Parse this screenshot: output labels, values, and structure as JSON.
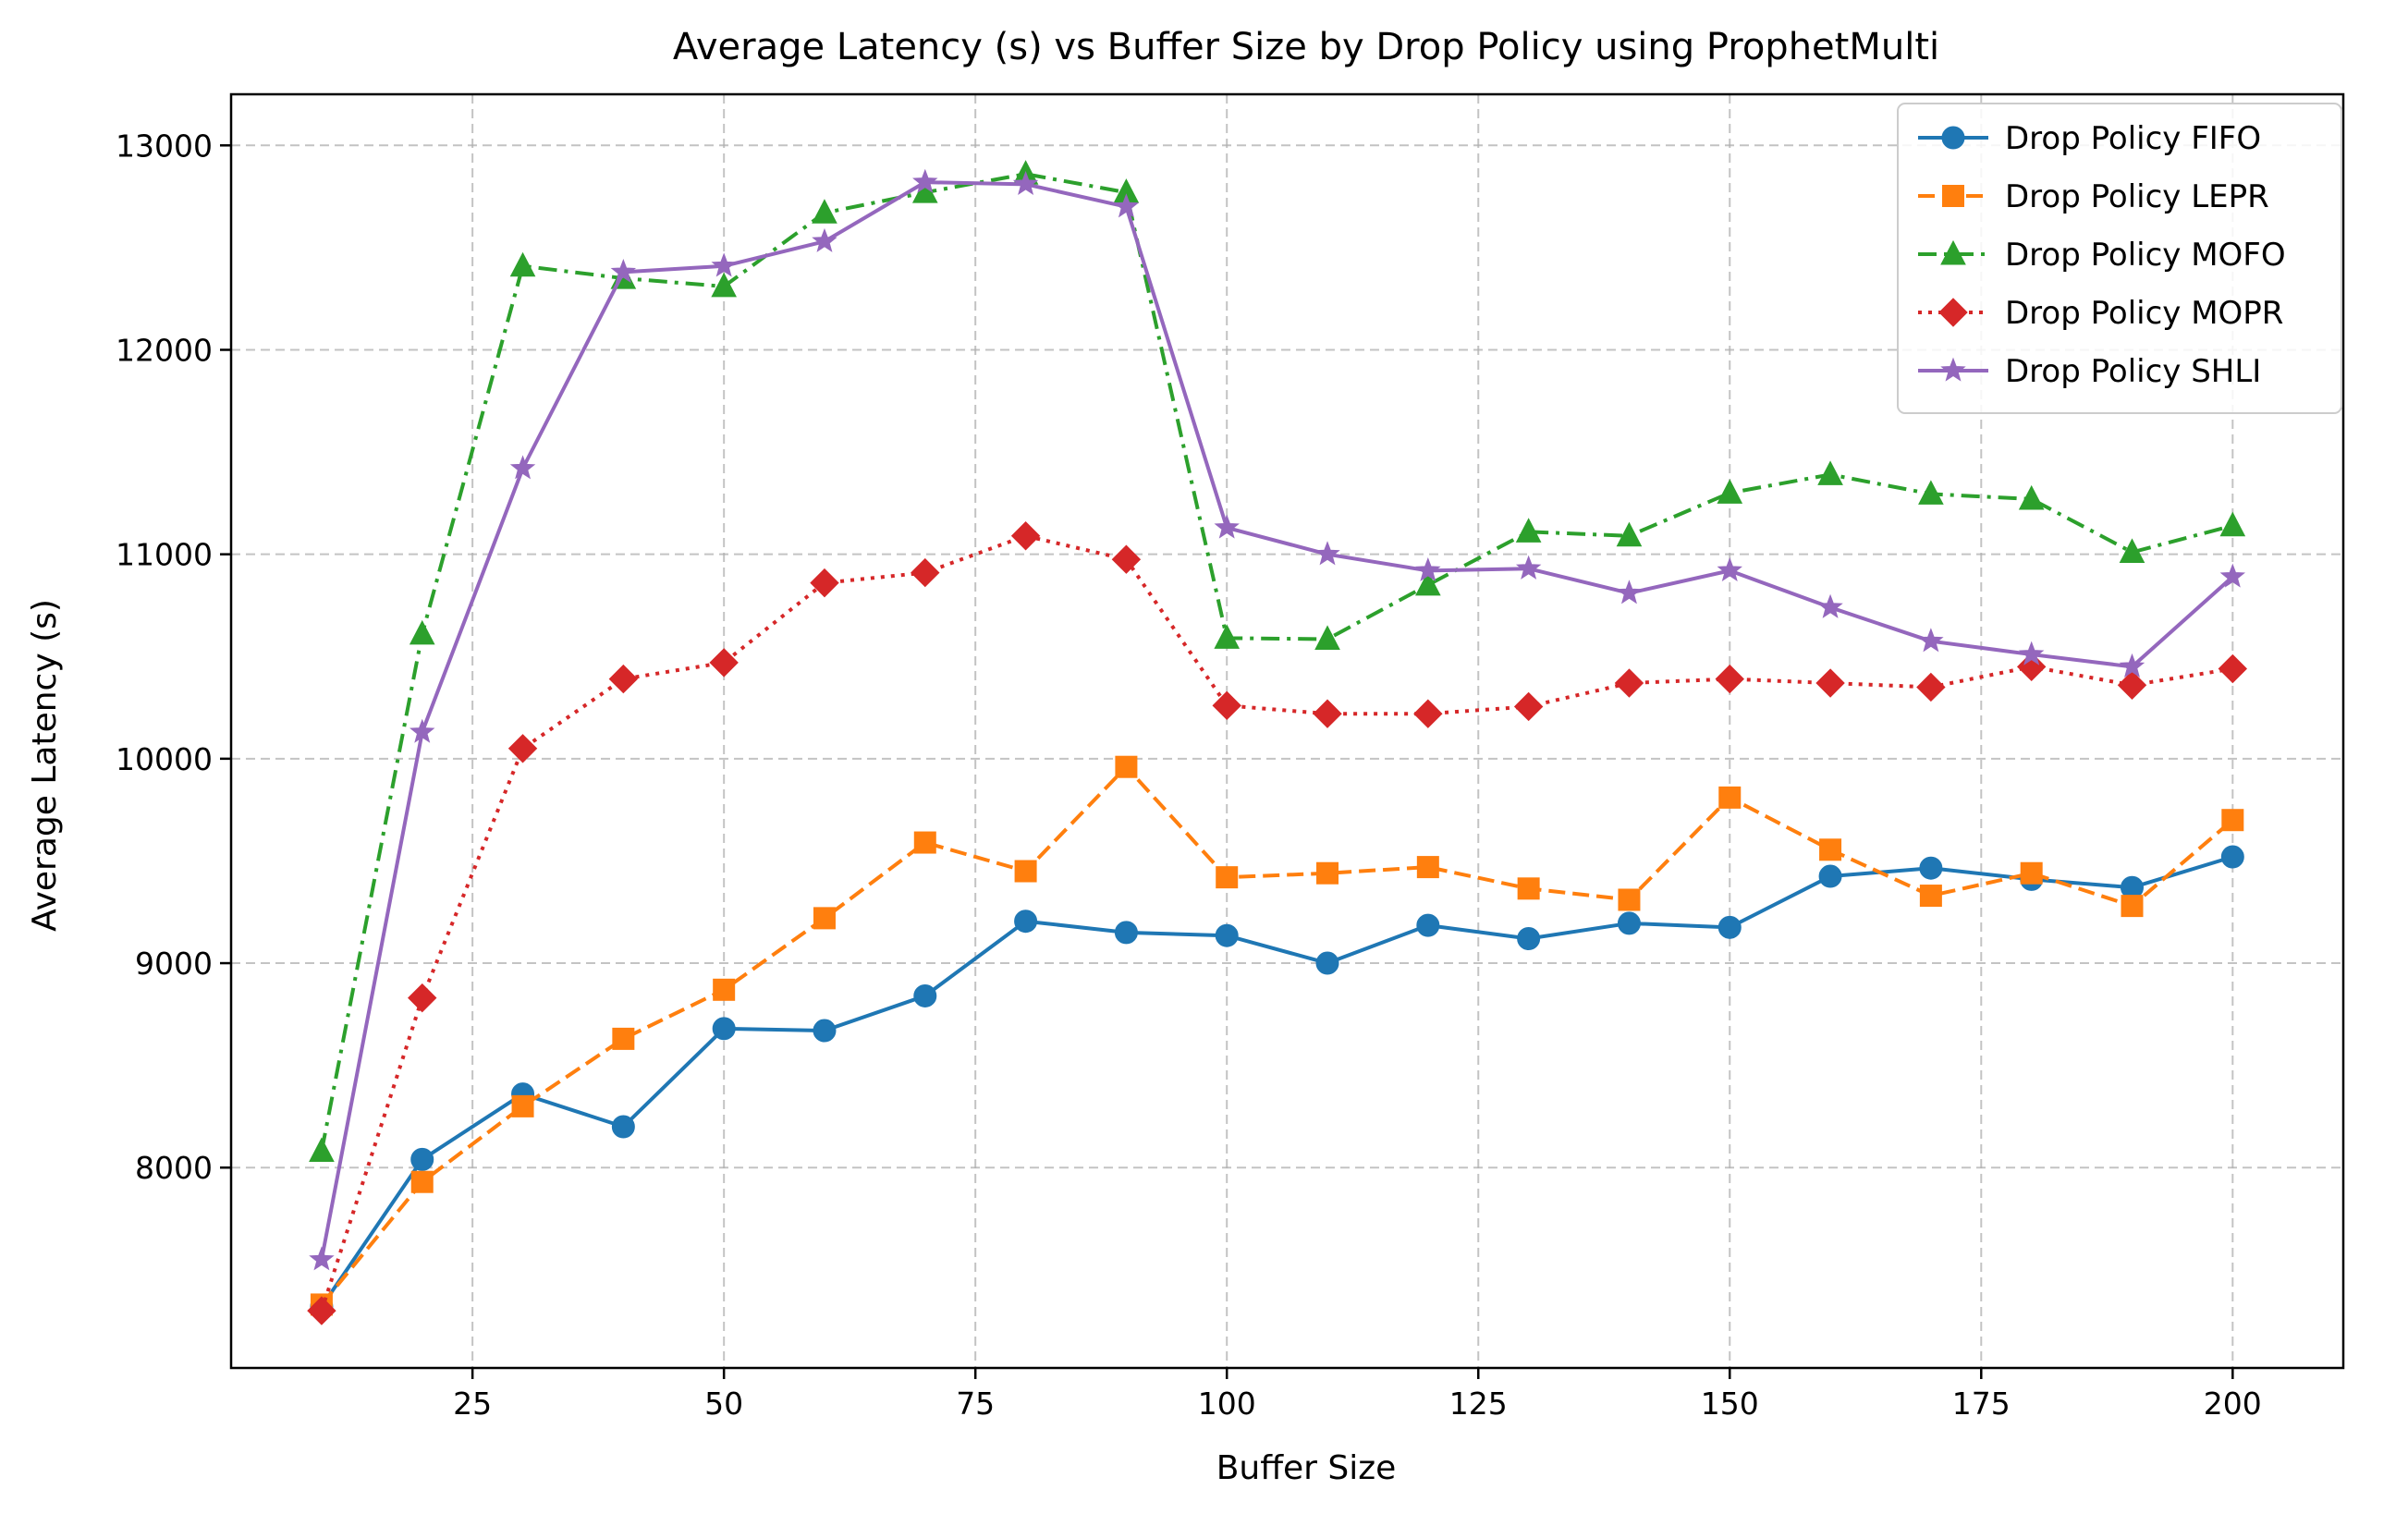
{
  "chart_data": {
    "type": "line",
    "title": "Average Latency (s) vs Buffer Size by Drop Policy using ProphetMulti",
    "xlabel": "Buffer Size",
    "ylabel": "Average Latency (s)",
    "xlim": [
      1,
      211
    ],
    "ylim": [
      7020,
      13250
    ],
    "xticks": [
      25,
      50,
      75,
      100,
      125,
      150,
      175,
      200
    ],
    "yticks": [
      8000,
      9000,
      10000,
      11000,
      12000,
      13000
    ],
    "grid": true,
    "legend_position": "top-right",
    "x": [
      10,
      20,
      30,
      40,
      50,
      60,
      70,
      80,
      90,
      100,
      110,
      120,
      130,
      140,
      150,
      160,
      170,
      180,
      190,
      200
    ],
    "series": [
      {
        "name": "Drop Policy FIFO",
        "color": "#1f77b4",
        "dash": "solid",
        "marker": "circle",
        "values": [
          7320,
          8040,
          8360,
          8200,
          8680,
          8670,
          8840,
          9205,
          9150,
          9135,
          9000,
          9185,
          9120,
          9195,
          9175,
          9425,
          9465,
          9410,
          9370,
          9520
        ]
      },
      {
        "name": "Drop Policy LEPR",
        "color": "#ff7f0e",
        "dash": "dashed",
        "marker": "square",
        "values": [
          7330,
          7930,
          8300,
          8630,
          8870,
          9220,
          9590,
          9450,
          9960,
          9420,
          9440,
          9470,
          9365,
          9310,
          9810,
          9555,
          9330,
          9440,
          9280,
          9700
        ]
      },
      {
        "name": "Drop Policy MOFO",
        "color": "#2ca02c",
        "dash": "dashdot",
        "marker": "triangle",
        "values": [
          8080,
          10610,
          12410,
          12350,
          12310,
          12670,
          12770,
          12860,
          12770,
          10590,
          10585,
          10850,
          11110,
          11090,
          11300,
          11390,
          11295,
          11270,
          11010,
          11140
        ]
      },
      {
        "name": "Drop Policy MOPR",
        "color": "#d62728",
        "dash": "dotted",
        "marker": "diamond",
        "values": [
          7300,
          8830,
          10050,
          10390,
          10470,
          10860,
          10910,
          11090,
          10975,
          10260,
          10220,
          10220,
          10255,
          10370,
          10390,
          10370,
          10350,
          10450,
          10360,
          10440
        ]
      },
      {
        "name": "Drop Policy SHLI",
        "color": "#9467bd",
        "dash": "solid",
        "marker": "star",
        "values": [
          7550,
          10130,
          11420,
          12380,
          12410,
          12530,
          12820,
          12810,
          12700,
          11130,
          11000,
          10920,
          10930,
          10810,
          10920,
          10740,
          10575,
          10510,
          10450,
          10890
        ]
      }
    ]
  }
}
